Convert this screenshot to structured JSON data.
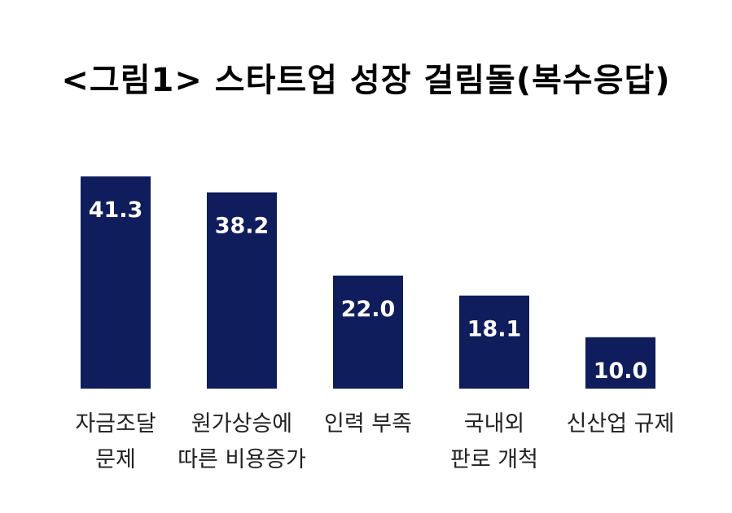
{
  "chart_data": {
    "type": "bar",
    "title": "<그림1> 스타트업 성장 걸림돌(복수응답)",
    "categories": [
      [
        "자금조달",
        "문제"
      ],
      [
        "원가상승에",
        "따른 비용증가"
      ],
      [
        "인력 부족"
      ],
      [
        "국내외",
        "판로 개척"
      ],
      [
        "신산업 규제"
      ]
    ],
    "values": [
      41.3,
      38.2,
      22.0,
      18.1,
      10.0
    ],
    "value_labels": [
      "41.3",
      "38.2",
      "22.0",
      "18.1",
      "10.0"
    ],
    "xlabel": "",
    "ylabel": "",
    "grid": false,
    "legend": "none",
    "bar_color": "#0f1d5c"
  }
}
